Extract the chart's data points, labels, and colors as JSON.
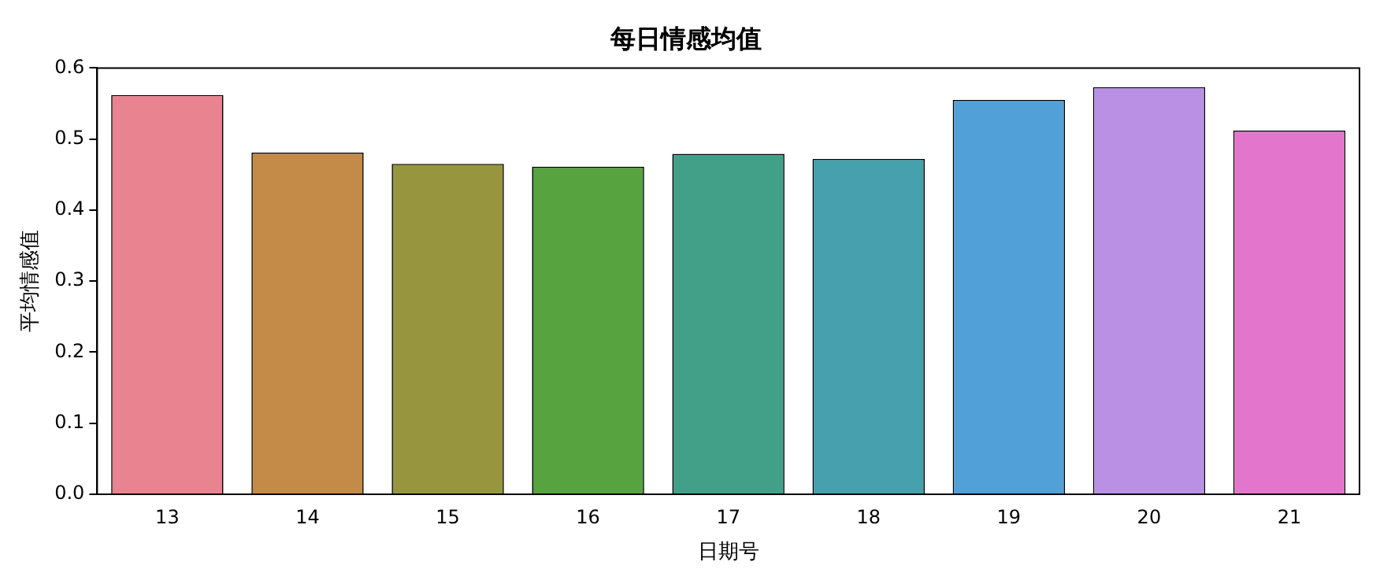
{
  "chart_data": {
    "type": "bar",
    "title": "每日情感均值",
    "xlabel": "日期号",
    "ylabel": "平均情感值",
    "categories": [
      "13",
      "14",
      "15",
      "16",
      "17",
      "18",
      "19",
      "20",
      "21"
    ],
    "values": [
      0.562,
      0.481,
      0.465,
      0.461,
      0.479,
      0.472,
      0.555,
      0.573,
      0.512
    ],
    "colors": [
      "#e8838f",
      "#c48a48",
      "#97963e",
      "#57a33f",
      "#43a088",
      "#46a0ad",
      "#52a0d8",
      "#b990e4",
      "#e376cc"
    ],
    "ylim": [
      0,
      0.6
    ],
    "yticks": [
      {
        "value": 0,
        "label": "0.0"
      },
      0.1,
      0.2,
      0.3,
      0.4,
      0.5,
      0.6
    ],
    "grid": false,
    "legend": false
  }
}
